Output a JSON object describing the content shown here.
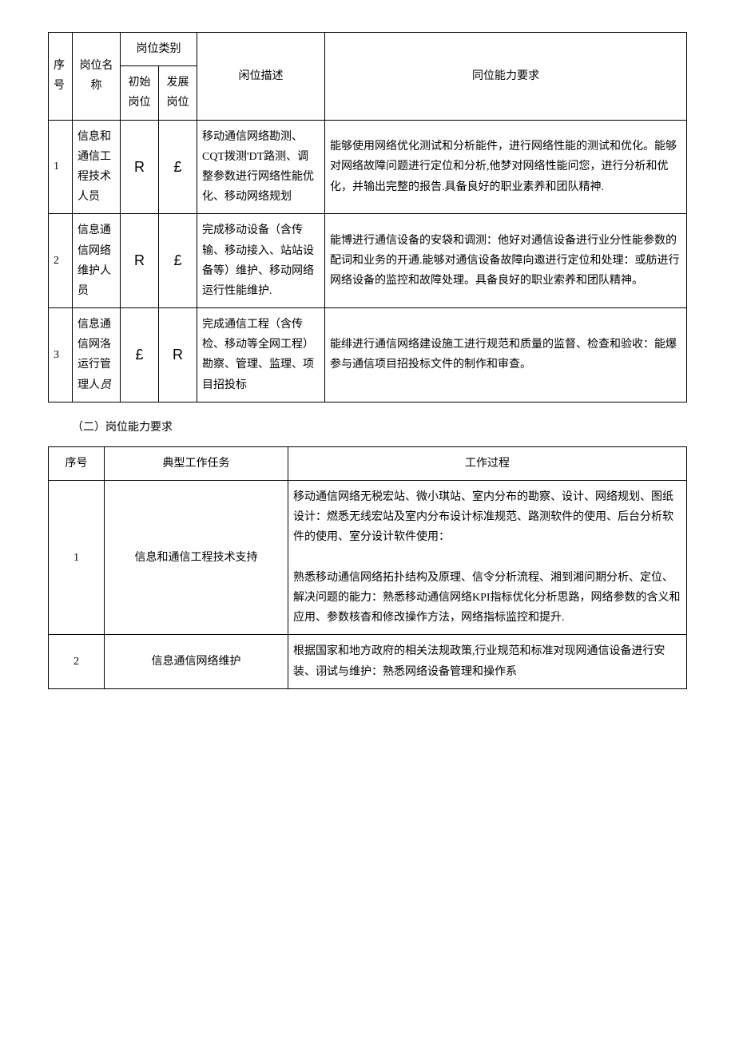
{
  "table1": {
    "headers": {
      "seq": "序号",
      "name": "岗位名称",
      "category": "岗位类别",
      "initial": "初始岗位",
      "develop": "发展岗位",
      "desc": "闲位描述",
      "req": "同位能力要求"
    },
    "rows": [
      {
        "seq": "1",
        "name": "信息和通信工程技术人员",
        "initial": "R",
        "develop": "£",
        "desc": "移动通信网络勘测、CQT拨测'DT路测、调整参数进行网络性能优化、移动网络规划",
        "req": "能够使用网络优化测试和分析能件，进行网络性能的测试和优化。能够对网络故障问题进行定位和分析,他梦对网络性能问您，进行分析和优化，并输出完整的报告.具备良好的职业素养和团队精神."
      },
      {
        "seq": "2",
        "name": "信息通信网络维护人员",
        "initial": "R",
        "develop": "£",
        "desc": "完成移动设备（含传输、移动接入、站站设备等）维护、移动网络运行性能维护.",
        "req": "能博进行通信设备的安袋和调测：他好对通信设备进行业分性能参数的配词和业务的开通.能够对通信设备故障向邀进行定位和处理：或舫进行网络设备的监控和故障处理。具备良好的职业索养和团队精神。"
      },
      {
        "seq": "3",
        "name": "信息通信网洛运行管理人员",
        "initial": "£",
        "develop": "R",
        "desc": "完成通信工程（含传检、移动等全网工程）勘察、管理、监理、项目招投标",
        "req": "能绯进行通信网络建设施工进行规范和质量的监督、检查和验收：能爆参与通信项目招投标文件的制作和审查。"
      }
    ]
  },
  "section_title": "（二）岗位能力要求",
  "table2": {
    "headers": {
      "seq": "序号",
      "task": "典型工作任务",
      "process": "工作过程"
    },
    "rows": [
      {
        "seq": "1",
        "task": "信息和通信工程技术支持",
        "process": "移动通信网络无税宏站、微小琪站、室内分布的勘察、设计、网络规划、图纸设计：燃悉无线宏站及室内分布设计标准规范、路测软件的使用、后台分析软件的使用、室分设计软件使用：\n\n熟悉移动通信网络拓扑结构及原理、信令分析流程、湘到湘问期分析、定位、解决问题的能力：熟悉移动通信网络KPI指标优化分析思路，网络参数的含义和应用、参数核杳和修改操作方法，网络指标监控和提升."
      },
      {
        "seq": "2",
        "task": "信息通信网络维护",
        "process": "根据国家和地方政府的相关法规政策,行业规范和标准对现网通信设备进行安装、诩试与维护：熟悉网络设备管理和操作系"
      }
    ]
  }
}
